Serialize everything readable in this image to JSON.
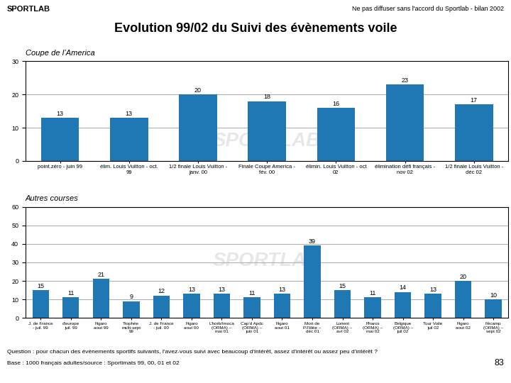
{
  "title": "Evolution 99/02 du Suivi des évènements voile",
  "annotations": [
    "SPORTLAB",
    "Ne pas diffuser sans l'accord du Sportlab - bilan 2002",
    "Question : pour chacun des évènements sportifs suivants, l'avez-vous suivi avec beaucoup d'intérêt, assez d'intérêt ou assez peu d'intérêt ?",
    "Base : 1000 français adultes/source : Sportimats 99, 00, 01 et 02",
    "83"
  ],
  "chart_data": [
    {
      "type": "bar",
      "title": "Coupe de l’America",
      "categories": [
        "point.zéro - juin 99",
        "élim. Louis Vuitton - oct.\n99",
        "1/2 finale Louis Vuitton -\njanv. 00",
        "Finale Coupe America -\nfév. 00",
        "élimin. Louis Vuitton - oct\n02",
        "élimination défi français -\nnov 02",
        "1/2 finale Louis Vuitton -\ndéc 02"
      ],
      "values": [
        13,
        13,
        20,
        18,
        16,
        23,
        17
      ],
      "ylim": [
        0,
        30
      ],
      "yticks": [
        0,
        10,
        20,
        30
      ],
      "grid": true,
      "data_labels": true,
      "annotations": [
        "SPORTLAB"
      ]
    },
    {
      "type": "bar",
      "title": "Autres courses",
      "categories": [
        "J. de France\n- juil. 99",
        "d'europe\njuil. 99",
        "Figaro\naout 99",
        "Trophée\nmulti-sept\n99",
        "J. de France\n- juil. 00",
        "Figaro\naout 00",
        "L'horb/Imoca\n(ORMA) –\nmai 01",
        "Cap'd Apdc\n(ORMA) –\njuin 01",
        "Figaro\naout 01",
        "Mort de\nP.Fillée –\ndéc 01",
        "Lorient\n(ORMA) –\navr 02",
        "Pharos\n(ORMA) –\nmai 02",
        "Belgique\n(ORMA) –\njuil 02",
        "Tour Voile\njuil 02",
        "Figaro\naout 02",
        "Fécamp\n(ORMA) –\nsept 02"
      ],
      "values": [
        15,
        11,
        21,
        9,
        12,
        13,
        13,
        11,
        13,
        39,
        15,
        11,
        14,
        13,
        20,
        10
      ],
      "ylim": [
        0,
        60
      ],
      "yticks": [
        0,
        10,
        20,
        30,
        40,
        50,
        60
      ],
      "grid": true,
      "data_labels": true,
      "annotations": [
        "SPORTLAB"
      ]
    }
  ]
}
